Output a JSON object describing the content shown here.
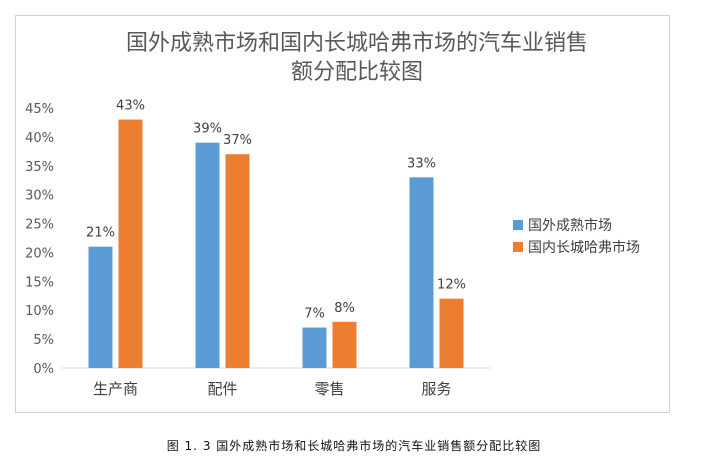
{
  "chart_data": {
    "type": "bar",
    "title_line1": "国外成熟市场和国内长城哈弗市场的汽车业销售",
    "title_line2": "额分配比较图",
    "categories": [
      "生产商",
      "配件",
      "零售",
      "服务"
    ],
    "series": [
      {
        "name": "国外成熟市场",
        "values": [
          21,
          39,
          7,
          33
        ],
        "labels": [
          "21%",
          "39%",
          "7%",
          "33%"
        ],
        "color": "#5b9bd5"
      },
      {
        "name": "国内长城哈弗市场",
        "values": [
          43,
          37,
          8,
          12
        ],
        "labels": [
          "43%",
          "37%",
          "8%",
          "12%"
        ],
        "color": "#ed7d31"
      }
    ],
    "ylim": [
      0,
      45
    ],
    "yticks": [
      0,
      5,
      10,
      15,
      20,
      25,
      30,
      35,
      40,
      45
    ],
    "ytick_labels": [
      "0%",
      "5%",
      "10%",
      "15%",
      "20%",
      "25%",
      "30%",
      "35%",
      "40%",
      "45%"
    ],
    "grid": false,
    "legend": "right"
  },
  "caption": "图 1. 3 国外成熟市场和长城哈弗市场的汽车业销售额分配比较图"
}
